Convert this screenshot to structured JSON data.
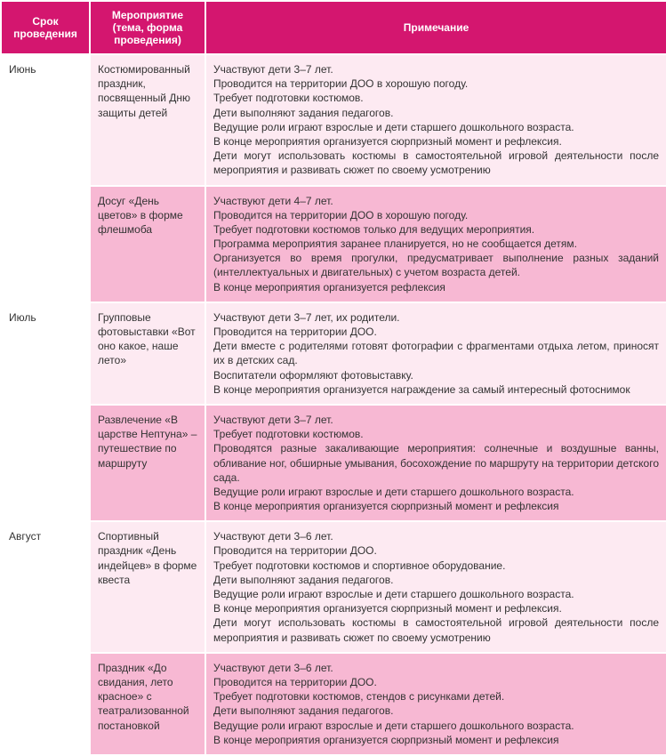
{
  "headers": {
    "period": "Срок проведения",
    "event": "Мероприятие (тема, форма проведения)",
    "note": "Примечание"
  },
  "colors": {
    "header_bg": "#d4166f",
    "header_text": "#ffffff",
    "row_light": "#fdeaf2",
    "row_dark": "#f7b8d3",
    "border": "#ffffff"
  },
  "rows": [
    {
      "month": "Июнь",
      "event": "Костюмированный праздник, посвященный Дню защиты детей",
      "note": "Участвуют дети 3–7 лет.\nПроводится на территории ДОО в хорошую погоду.\nТребует подготовки костюмов.\nДети выполняют задания педагогов.\nВедущие роли играют взрослые и дети старшего дошкольного возраста.\nВ конце мероприятия организуется сюрпризный момент и рефлексия.\nДети могут использовать костюмы в самостоятельной игровой деятельности после мероприятия и развивать сюжет по своему усмотрению"
    },
    {
      "month": "",
      "event": "Досуг «День цветов» в форме флешмоба",
      "note": "Участвуют дети 4–7 лет.\nПроводится на территории ДОО в хорошую погоду.\nТребует подготовки костюмов только для ведущих мероприятия.\nПрограмма мероприятия заранее планируется, но не сообщается детям.\nОрганизуется во время прогулки, предусматривает выполнение разных заданий (интеллектуальных и двигательных) с учетом возраста детей.\nВ конце мероприятия организуется рефлексия"
    },
    {
      "month": "Июль",
      "event": "Групповые фотовыставки «Вот оно какое, наше лето»",
      "note": "Участвуют дети 3–7 лет, их родители.\nПроводится на территории ДОО.\nДети вместе с родителями готовят фотографии с фрагментами отдыха летом, приносят их в детских сад.\nВоспитатели оформляют фотовыставку.\nВ конце мероприятия организуется награждение за самый интересный фотоснимок"
    },
    {
      "month": "",
      "event": "Развлечение «В царстве Нептуна» – путешествие по маршруту",
      "note": "Участвуют дети 3–7 лет.\nТребует подготовки костюмов.\nПроводятся разные закаливающие мероприятия: солнечные и воздушные ванны, обливание ног, обширные умывания, босохождение по маршруту на территории детского сада.\nВедущие роли играют взрослые и дети старшего дошкольного возраста.\nВ конце мероприятия организуется сюрпризный момент и рефлексия"
    },
    {
      "month": "Август",
      "event": "Спортивный праздник «День индейцев» в форме квеста",
      "note": "Участвуют дети 3–6 лет.\nПроводится на территории ДОО.\nТребует подготовки костюмов и спортивное оборудование.\nДети выполняют задания педагогов.\nВедущие роли играют взрослые и дети старшего дошкольного возраста.\nВ конце мероприятия организуется сюрпризный момент и рефлексия.\nДети могут использовать костюмы в самостоятельной игровой деятельности после мероприятия и развивать сюжет по своему усмотрению"
    },
    {
      "month": "",
      "event": "Праздник «До свидания, лето красное» с театрализованной постановкой",
      "note": "Участвуют дети 3–6 лет.\nПроводится на территории ДОО.\nТребует подготовки костюмов, стендов с рисунками детей.\nДети выполняют задания педагогов.\nВедущие роли играют взрослые и дети старшего дошкольного возраста.\nВ конце мероприятия организуется сюрпризный момент и рефлексия"
    }
  ]
}
